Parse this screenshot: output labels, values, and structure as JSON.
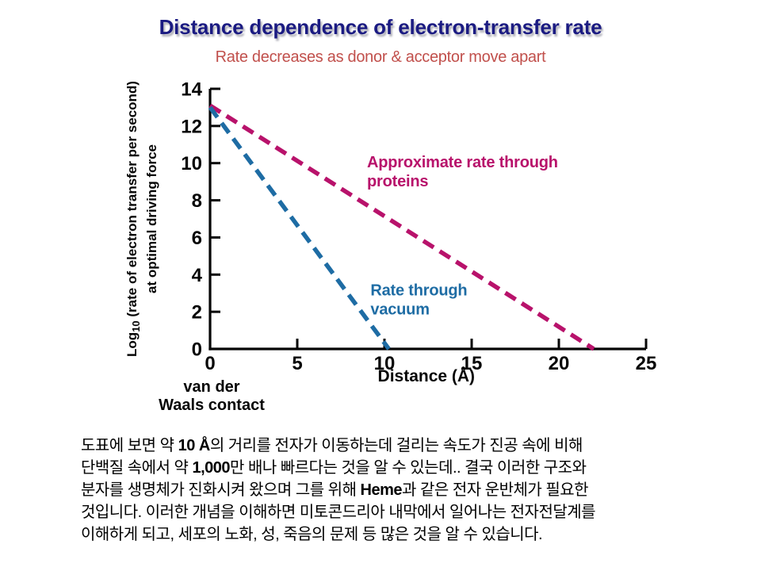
{
  "slide": {
    "title": "Distance dependence of electron-transfer rate",
    "subtitle": "Rate decreases as donor & acceptor move apart"
  },
  "colors": {
    "title": "#1b1b82",
    "subtitle": "#c1504c",
    "axis": "#060606",
    "proteins": "#b8126b",
    "vacuum": "#1e6ca4",
    "caption_text": "#000000"
  },
  "chart_data": {
    "type": "line",
    "title": "",
    "xlabel": "Distance (Å)",
    "ylabel": "Log10 (rate of electron transfer per second) at optimal driving force",
    "ylabel_render": {
      "line1_prefix": "Log",
      "line1_sub": "10",
      "line1_rest": " (rate of electron transfer per second)",
      "line2": "at optimal driving force"
    },
    "xlim": [
      0,
      25
    ],
    "ylim": [
      0,
      14
    ],
    "xticks": [
      0,
      5,
      10,
      15,
      20,
      25
    ],
    "yticks": [
      0,
      2,
      4,
      6,
      8,
      10,
      12,
      14
    ],
    "grid": false,
    "legend_position": "inline-annotations",
    "origin_caption_lines": [
      "van der",
      "Waals contact"
    ],
    "series": [
      {
        "name": "Approximate rate through proteins",
        "color": "#b8126b",
        "line_style": "dashed",
        "points": [
          [
            0,
            13.1
          ],
          [
            22,
            0
          ]
        ],
        "annotation_lines": [
          "Approximate rate through",
          "proteins"
        ],
        "annotation_anchor_xy": [
          9.0,
          10.5
        ]
      },
      {
        "name": "Rate through vacuum",
        "color": "#1e6ca4",
        "line_style": "dashed",
        "points": [
          [
            0,
            13.0
          ],
          [
            10.25,
            0
          ]
        ],
        "annotation_lines": [
          "Rate through",
          "vacuum"
        ],
        "annotation_anchor_xy": [
          9.2,
          3.6
        ]
      }
    ]
  },
  "caption_ko": {
    "lines": [
      [
        {
          "t": "도표에 보면 약 "
        },
        {
          "t": "10 Å",
          "b": 1
        },
        {
          "t": "의 거리를 전자가 이동하는데 걸리는 속도가 진공 속에 비해"
        }
      ],
      [
        {
          "t": "단백질 속에서 약 "
        },
        {
          "t": "1,000",
          "b": 1
        },
        {
          "t": "만 배나 빠르다는 것을 알 수 있는데.. 결국 이러한 구조와"
        }
      ],
      [
        {
          "t": "분자를 생명체가 진화시켜 왔으며 그를 위해 "
        },
        {
          "t": "Heme",
          "b": 1
        },
        {
          "t": "과 같은 전자 운반체가 필요한"
        }
      ],
      [
        {
          "t": "것입니다. 이러한 개념을 이해하면 미토콘드리아 내막에서 일어나는 전자전달계를"
        }
      ],
      [
        {
          "t": "이해하게 되고, 세포의 노화, 성, 죽음의 문제 등 많은 것을 알 수 있습니다."
        }
      ]
    ]
  }
}
